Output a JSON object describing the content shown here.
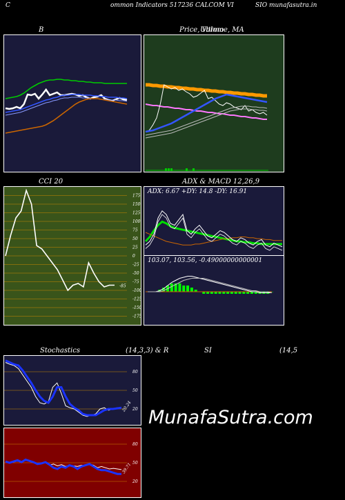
{
  "header": {
    "left": "C",
    "middle": "ommon  Indicators 517236  CALCOM VI",
    "right": "SIO munafasutra.in"
  },
  "watermark": "MunafaSutra.com",
  "colors": {
    "navy": "#1a1a3a",
    "green": "#1e3c1e",
    "olive": "#39541a",
    "darkred": "#800000"
  },
  "chart_data": [
    {
      "type": "line",
      "id": "bollinger",
      "title": "B",
      "series": [
        {
          "color": "#ffffff",
          "values": [
            14,
            13,
            14,
            16,
            14,
            20,
            34,
            33,
            35,
            28,
            34,
            41,
            33,
            35,
            37,
            33,
            33,
            34,
            35,
            34,
            32,
            33,
            30,
            28,
            30,
            31,
            33,
            28,
            26,
            25,
            27,
            29,
            27,
            26
          ]
        },
        {
          "color": "#3355ff",
          "values": [
            8,
            9,
            10,
            11,
            12,
            14,
            16,
            18,
            20,
            22,
            24,
            26,
            27,
            29,
            30,
            32,
            33,
            33,
            34,
            34,
            34,
            33,
            33,
            33,
            32,
            32,
            31,
            31,
            30,
            30,
            30,
            29,
            29,
            28
          ]
        },
        {
          "color": "#00cc00",
          "values": [
            28,
            29,
            30,
            31,
            33,
            36,
            40,
            44,
            47,
            50,
            52,
            54,
            55,
            55,
            56,
            56,
            55,
            55,
            54,
            54,
            53,
            53,
            52,
            52,
            51,
            51,
            51,
            50,
            50,
            50,
            50,
            50,
            50,
            50
          ]
        },
        {
          "color": "#cc6600",
          "values": [
            -22,
            -21,
            -20,
            -19,
            -18,
            -17,
            -16,
            -15,
            -14,
            -13,
            -12,
            -10,
            -7,
            -4,
            0,
            4,
            8,
            12,
            16,
            20,
            23,
            25,
            27,
            28,
            28,
            28,
            27,
            26,
            25,
            24,
            23,
            22,
            21,
            20
          ]
        }
      ]
    },
    {
      "type": "line",
      "id": "price-volume-ma",
      "title": "Price,  Volume, MA",
      "overlay_title": "Ultimo",
      "series": [
        {
          "color": "#ff9900",
          "values": [
            78,
            78,
            77,
            77,
            76,
            76,
            75,
            75,
            74,
            74,
            73,
            73,
            72,
            72,
            71,
            71,
            70,
            70,
            69,
            69,
            68,
            68,
            67,
            67,
            66,
            66,
            65,
            65,
            64,
            64,
            63,
            63,
            62,
            62
          ]
        },
        {
          "color": "#ff77ff",
          "values": [
            50,
            49,
            48,
            48,
            47,
            46,
            46,
            45,
            44,
            44,
            43,
            42,
            42,
            41,
            40,
            40,
            39,
            38,
            38,
            37,
            36,
            36,
            35,
            34,
            34,
            33,
            32,
            32,
            31,
            30,
            30,
            29,
            28,
            28
          ]
        },
        {
          "color": "#ffffff",
          "values": [
            10,
            12,
            20,
            30,
            50,
            78,
            75,
            72,
            74,
            70,
            72,
            68,
            65,
            60,
            62,
            66,
            70,
            58,
            60,
            55,
            50,
            48,
            52,
            50,
            46,
            44,
            42,
            48,
            40,
            42,
            38,
            36,
            38,
            34
          ]
        },
        {
          "color": "#3355ff",
          "values": [
            10,
            11,
            12,
            14,
            16,
            18,
            20,
            22,
            25,
            28,
            31,
            34,
            37,
            40,
            43,
            46,
            49,
            52,
            55,
            58,
            60,
            62,
            64,
            63,
            62,
            61,
            60,
            59,
            58,
            57,
            56,
            55,
            54,
            53
          ]
        },
        {
          "color": "#bbbbbb",
          "values": [
            5,
            6,
            7,
            8,
            9,
            10,
            11,
            12,
            14,
            16,
            18,
            20,
            22,
            24,
            26,
            28,
            30,
            32,
            34,
            36,
            38,
            40,
            42,
            44,
            45,
            46,
            47,
            47,
            47,
            46,
            46,
            45,
            45,
            44
          ]
        }
      ]
    },
    {
      "type": "line",
      "id": "cci",
      "title": "CCI 20",
      "yticks": [
        175,
        150,
        125,
        100,
        75,
        50,
        25,
        0,
        -25,
        -50,
        -75,
        -100,
        -125,
        -150,
        -175
      ],
      "ylim": [
        -190,
        190
      ],
      "last_label": "-85",
      "values": [
        0,
        60,
        110,
        130,
        190,
        150,
        30,
        20,
        0,
        -20,
        -40,
        -70,
        -100,
        -85,
        -80,
        -90,
        -20,
        -50,
        -75,
        -90,
        -85,
        -85
      ]
    },
    {
      "type": "line",
      "id": "adx",
      "title": "ADX  & MACD 12,26,9",
      "label": "ADX: 6.67 +DY: 14.8  -DY: 16.91",
      "series": [
        {
          "color": "#00dd00",
          "values": [
            10,
            15,
            22,
            28,
            32,
            30,
            27,
            25,
            24,
            23,
            22,
            21,
            20,
            19,
            18,
            17,
            16,
            15,
            14,
            13,
            12,
            11,
            10,
            10,
            9,
            9,
            8,
            8,
            7,
            7,
            7,
            7,
            7,
            7
          ]
        },
        {
          "color": "#cc6600",
          "values": [
            20,
            18,
            16,
            14,
            12,
            10,
            9,
            8,
            7,
            6,
            6,
            6,
            7,
            7,
            8,
            9,
            10,
            11,
            12,
            13,
            13,
            14,
            14,
            15,
            15,
            14,
            14,
            13,
            13,
            12,
            12,
            11,
            11,
            11
          ]
        },
        {
          "color": "#ffffff",
          "values": [
            6,
            10,
            18,
            36,
            44,
            40,
            30,
            28,
            34,
            40,
            22,
            18,
            24,
            28,
            22,
            16,
            14,
            18,
            22,
            20,
            16,
            12,
            10,
            14,
            12,
            8,
            6,
            10,
            12,
            6,
            4,
            8,
            6,
            4
          ]
        }
      ]
    },
    {
      "type": "line",
      "id": "macd",
      "label": "103.07,  103.56,  -0.49000000000001",
      "series": [
        {
          "color": "#ffffff",
          "values": [
            0,
            0,
            0,
            1,
            3,
            6,
            9,
            11,
            13,
            14,
            15,
            15,
            14,
            13,
            12,
            11,
            10,
            9,
            8,
            7,
            6,
            5,
            4,
            3,
            2,
            1,
            0,
            0,
            -1,
            -1,
            -1,
            -1
          ]
        },
        {
          "color": "#bbbbbb",
          "values": [
            0,
            0,
            0,
            0,
            1,
            3,
            5,
            7,
            9,
            11,
            12,
            13,
            13,
            13,
            13,
            12,
            11,
            10,
            9,
            8,
            7,
            6,
            5,
            4,
            3,
            2,
            1,
            1,
            0,
            0,
            0,
            -1
          ]
        }
      ],
      "histogram": [
        0,
        0,
        0,
        1,
        2,
        3,
        4,
        4,
        4,
        3,
        3,
        2,
        1,
        0,
        -1,
        -1,
        -1,
        -1,
        -1,
        -1,
        -1,
        -1,
        -1,
        -1,
        -1,
        -1,
        -1,
        -1,
        -1,
        -1,
        -1,
        0
      ]
    },
    {
      "type": "line",
      "id": "stochastics",
      "title": "Stochastics",
      "params": "(14,3,3) & R",
      "yticks": [
        80,
        50,
        20
      ],
      "ylim": [
        0,
        100
      ],
      "last_label": "20.24",
      "series": [
        {
          "color": "#ffffff",
          "values": [
            95,
            92,
            90,
            85,
            75,
            65,
            55,
            40,
            30,
            28,
            32,
            55,
            62,
            45,
            25,
            22,
            20,
            15,
            10,
            8,
            10,
            12,
            20,
            22,
            18,
            20,
            22,
            22
          ]
        },
        {
          "color": "#1a33ff",
          "values": [
            98,
            95,
            92,
            90,
            82,
            72,
            62,
            50,
            40,
            33,
            30,
            40,
            55,
            55,
            40,
            28,
            22,
            18,
            12,
            10,
            10,
            10,
            14,
            18,
            20,
            20,
            21,
            22
          ]
        }
      ]
    },
    {
      "type": "line",
      "id": "rsi",
      "title": "SI",
      "params": "(14,5",
      "yticks": [
        80,
        50,
        20
      ],
      "ylim": [
        0,
        100
      ],
      "last_label": "39.71",
      "series": [
        {
          "color": "#ffffff",
          "values": [
            52,
            50,
            51,
            53,
            50,
            56,
            52,
            50,
            48,
            50,
            50,
            46,
            48,
            45,
            47,
            44,
            46,
            45,
            44,
            46,
            45,
            48,
            46,
            42,
            44,
            42,
            40,
            41,
            40,
            39
          ]
        },
        {
          "color": "#1a33ff",
          "values": [
            52,
            50,
            52,
            54,
            51,
            55,
            53,
            51,
            48,
            49,
            51,
            47,
            42,
            40,
            44,
            42,
            46,
            44,
            40,
            44,
            46,
            48,
            44,
            40,
            38,
            38,
            36,
            34,
            32,
            32
          ]
        }
      ]
    }
  ]
}
